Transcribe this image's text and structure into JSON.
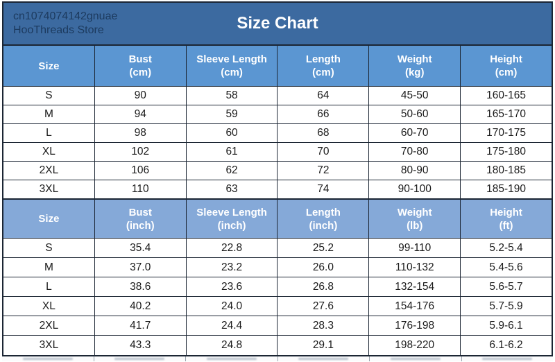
{
  "banner": {
    "store_line1": "cn1074074142gnuae",
    "store_line2": "HooThreads Store",
    "title": "Size Chart"
  },
  "colors": {
    "banner_bg": "#3c6aa0",
    "banner_text": "#1c3a5e",
    "title_text": "#ffffff",
    "header_cm_bg": "#5b96d2",
    "header_inch_bg": "#85a9d8",
    "header_text": "#ffffff",
    "border": "#1b2533",
    "cell_bg": "#ffffff",
    "cell_text": "#1a1a1a"
  },
  "chart_data": [
    {
      "type": "table",
      "title": "Size Chart (metric)",
      "unit_system": "cm",
      "headers": [
        {
          "label": "Size",
          "unit": ""
        },
        {
          "label": "Bust",
          "unit": "(cm)"
        },
        {
          "label": "Sleeve Length",
          "unit": "(cm)"
        },
        {
          "label": "Length",
          "unit": "(cm)"
        },
        {
          "label": "Weight",
          "unit": "(kg)"
        },
        {
          "label": "Height",
          "unit": "(cm)"
        }
      ],
      "rows": [
        [
          "S",
          "90",
          "58",
          "64",
          "45-50",
          "160-165"
        ],
        [
          "M",
          "94",
          "59",
          "66",
          "50-60",
          "165-170"
        ],
        [
          "L",
          "98",
          "60",
          "68",
          "60-70",
          "170-175"
        ],
        [
          "XL",
          "102",
          "61",
          "70",
          "70-80",
          "175-180"
        ],
        [
          "2XL",
          "106",
          "62",
          "72",
          "80-90",
          "180-185"
        ],
        [
          "3XL",
          "110",
          "63",
          "74",
          "90-100",
          "185-190"
        ]
      ]
    },
    {
      "type": "table",
      "title": "Size Chart (imperial)",
      "unit_system": "inch",
      "headers": [
        {
          "label": "Size",
          "unit": ""
        },
        {
          "label": "Bust",
          "unit": "(inch)"
        },
        {
          "label": "Sleeve Length",
          "unit": "(inch)"
        },
        {
          "label": "Length",
          "unit": "(inch)"
        },
        {
          "label": "Weight",
          "unit": "(lb)"
        },
        {
          "label": "Height",
          "unit": "(ft)"
        }
      ],
      "rows": [
        [
          "S",
          "35.4",
          "22.8",
          "25.2",
          "99-110",
          "5.2-5.4"
        ],
        [
          "M",
          "37.0",
          "23.2",
          "26.0",
          "110-132",
          "5.4-5.6"
        ],
        [
          "L",
          "38.6",
          "23.6",
          "26.8",
          "132-154",
          "5.6-5.7"
        ],
        [
          "XL",
          "40.2",
          "24.0",
          "27.6",
          "154-176",
          "5.7-5.9"
        ],
        [
          "2XL",
          "41.7",
          "24.4",
          "28.3",
          "176-198",
          "5.9-6.1"
        ],
        [
          "3XL",
          "43.3",
          "24.8",
          "29.1",
          "198-220",
          "6.1-6.2"
        ]
      ]
    }
  ]
}
